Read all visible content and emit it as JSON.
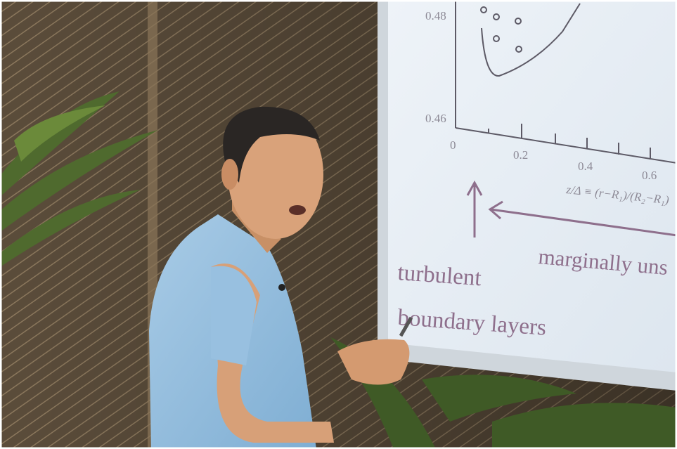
{
  "slide": {
    "y_labels": [
      "0.48",
      "0.46"
    ],
    "x_labels": [
      "0",
      "0.2",
      "0.4",
      "0.6"
    ],
    "x_axis_label": "z/Δ ≡ (r−R₁)/(R₂−R₁)",
    "texts": [
      "turbulent",
      "boundary layers",
      "marginally uns"
    ]
  }
}
